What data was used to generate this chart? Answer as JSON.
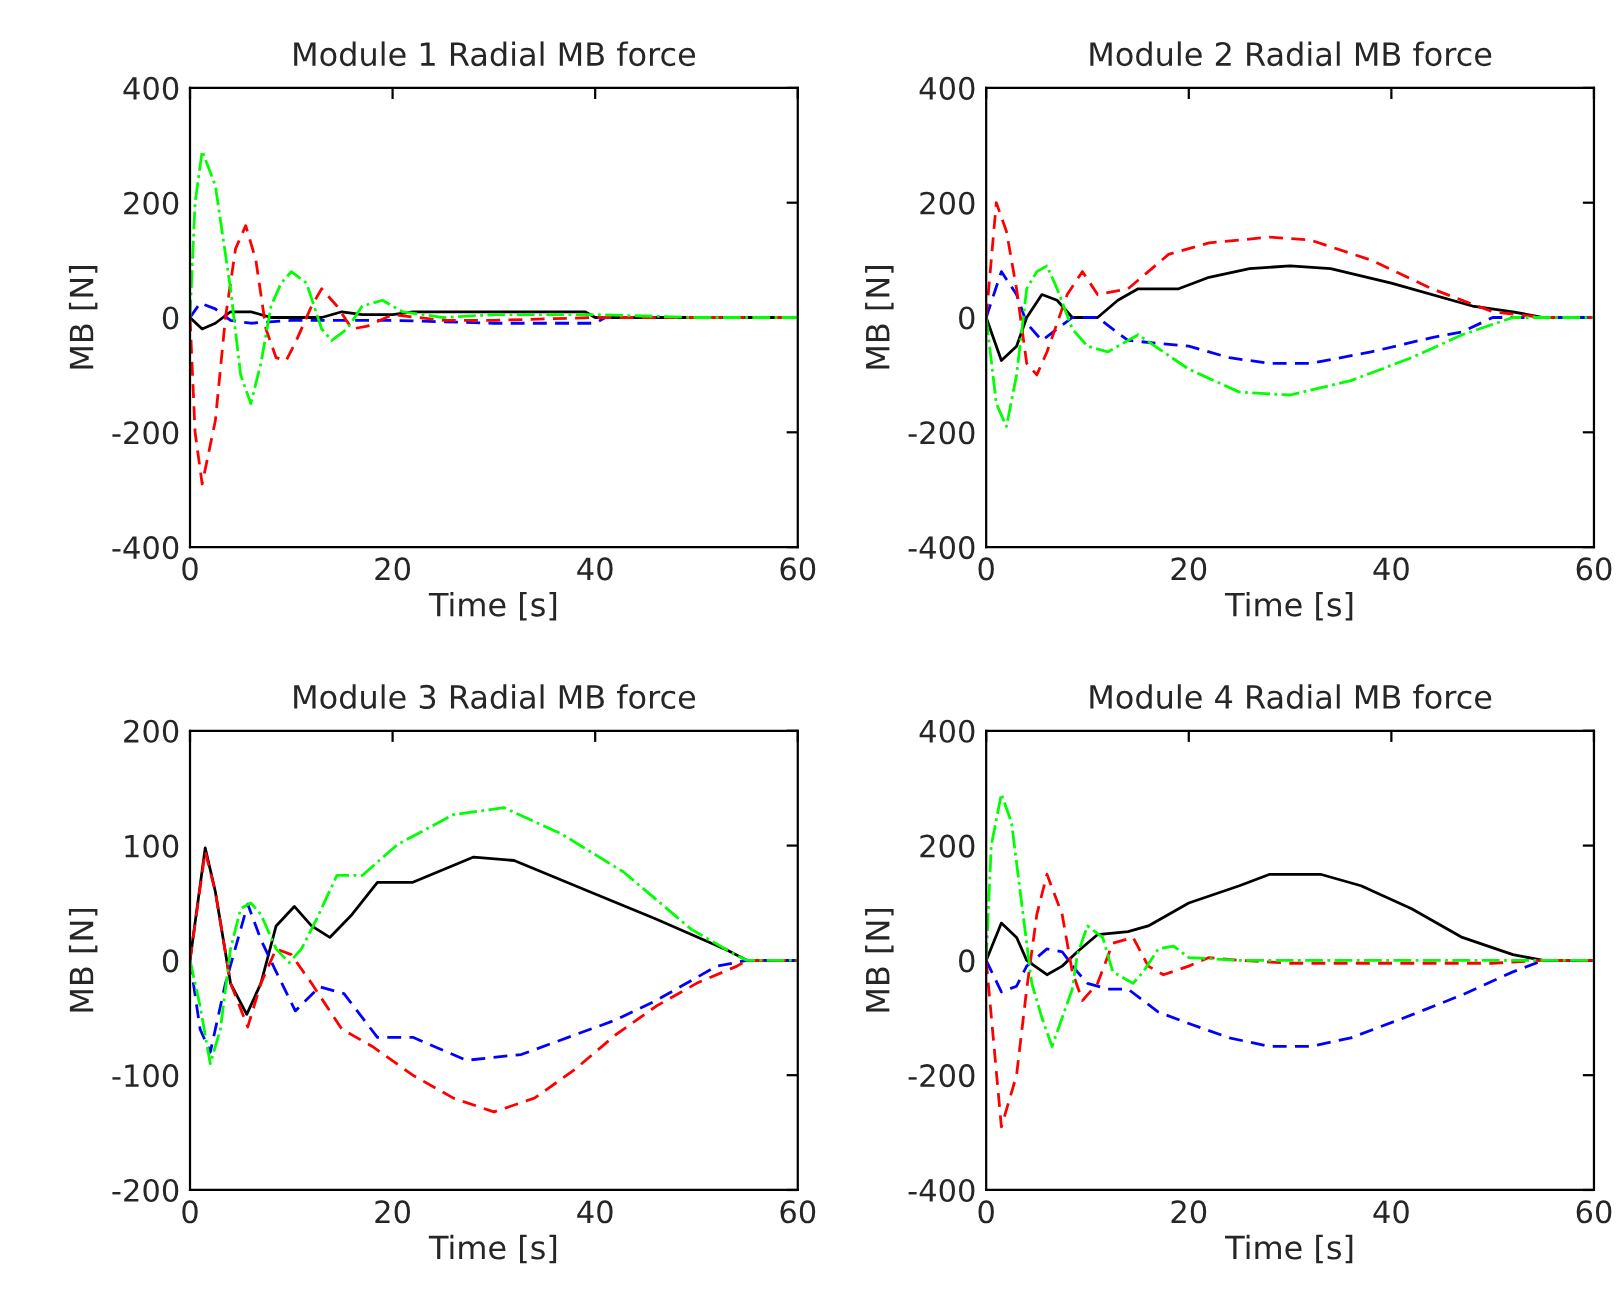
{
  "chart_data": [
    {
      "type": "line",
      "title": "Module 1 Radial MB force",
      "xlabel": "Time [s]",
      "ylabel": "MB [N]",
      "xlim": [
        0,
        60
      ],
      "xticks": [
        0,
        20,
        40,
        60
      ],
      "ylim": [
        -400,
        400
      ],
      "yticks": [
        -400,
        -200,
        0,
        200,
        400
      ],
      "series": [
        {
          "color": "#000000",
          "line_style": "solid",
          "x": [
            0,
            1.2,
            2.5,
            4,
            6,
            8,
            10,
            13,
            15,
            17,
            20,
            22,
            39,
            40,
            60
          ],
          "values": [
            0,
            -20,
            -10,
            10,
            10,
            0,
            0,
            0,
            10,
            5,
            5,
            10,
            10,
            0,
            0
          ]
        },
        {
          "color": "#0000ff",
          "line_style": "dashed",
          "x": [
            0,
            1,
            2.5,
            4,
            6,
            10,
            15,
            20,
            30,
            40,
            41,
            60
          ],
          "values": [
            0,
            25,
            15,
            -5,
            -10,
            -5,
            -5,
            -5,
            -10,
            -10,
            0,
            0
          ]
        },
        {
          "color": "#ff0000",
          "line_style": "dashed",
          "x": [
            0,
            0.5,
            1.2,
            2.5,
            3.5,
            4.5,
            5.5,
            6.5,
            7.5,
            8.5,
            9.5,
            10.5,
            12,
            13,
            14.5,
            16,
            17.5,
            20,
            25,
            30,
            40,
            50,
            60
          ],
          "values": [
            0,
            -200,
            -290,
            -180,
            0,
            120,
            160,
            100,
            -20,
            -70,
            -75,
            -40,
            20,
            50,
            20,
            -20,
            -15,
            5,
            -5,
            -5,
            0,
            0,
            0
          ]
        },
        {
          "color": "#00ff00",
          "line_style": "dashdot",
          "x": [
            0,
            0.5,
            1.2,
            2.5,
            4,
            5,
            6,
            7,
            8,
            9,
            10,
            11.5,
            13,
            14,
            15.5,
            17,
            19,
            21,
            25,
            30,
            40,
            50,
            60
          ],
          "values": [
            0,
            200,
            290,
            230,
            50,
            -100,
            -150,
            -80,
            20,
            60,
            80,
            60,
            -20,
            -40,
            -20,
            20,
            30,
            10,
            0,
            5,
            5,
            0,
            0
          ]
        }
      ]
    },
    {
      "type": "line",
      "title": "Module 2 Radial MB force",
      "xlabel": "Time [s]",
      "ylabel": "MB [N]",
      "xlim": [
        0,
        60
      ],
      "xticks": [
        0,
        20,
        40,
        60
      ],
      "ylim": [
        -400,
        400
      ],
      "yticks": [
        -400,
        -200,
        0,
        200,
        400
      ],
      "series": [
        {
          "color": "#000000",
          "line_style": "solid",
          "x": [
            0,
            1.5,
            3,
            4,
            5.5,
            7,
            8.5,
            11,
            13,
            15,
            19,
            22,
            26,
            30,
            34,
            40,
            48,
            52,
            55,
            60
          ],
          "values": [
            0,
            -75,
            -50,
            0,
            40,
            30,
            0,
            0,
            30,
            50,
            50,
            70,
            85,
            90,
            85,
            60,
            20,
            10,
            0,
            0
          ]
        },
        {
          "color": "#0000ff",
          "line_style": "dashed",
          "x": [
            0,
            1.5,
            3,
            4,
            5.5,
            7,
            8.5,
            11,
            14,
            20,
            24,
            28,
            32,
            38,
            44,
            47,
            50,
            60
          ],
          "values": [
            0,
            80,
            40,
            -10,
            -40,
            -20,
            0,
            0,
            -40,
            -50,
            -70,
            -80,
            -80,
            -60,
            -35,
            -25,
            0,
            0
          ]
        },
        {
          "color": "#ff0000",
          "line_style": "dashed",
          "x": [
            0,
            1,
            2,
            3,
            4,
            5,
            6,
            8,
            9.5,
            11,
            14,
            18,
            22,
            28,
            32,
            38,
            44,
            50,
            55,
            60
          ],
          "values": [
            0,
            200,
            150,
            50,
            -80,
            -100,
            -60,
            40,
            80,
            40,
            50,
            110,
            130,
            140,
            135,
            100,
            50,
            10,
            0,
            0
          ]
        },
        {
          "color": "#00ff00",
          "line_style": "dashdot",
          "x": [
            0,
            1,
            2,
            3,
            4,
            5,
            6,
            7,
            8.5,
            10,
            12,
            15,
            20,
            25,
            30,
            36,
            42,
            47,
            52,
            60
          ],
          "values": [
            0,
            -150,
            -190,
            -100,
            50,
            80,
            90,
            50,
            -20,
            -50,
            -60,
            -30,
            -90,
            -130,
            -135,
            -110,
            -70,
            -30,
            0,
            0
          ]
        }
      ]
    },
    {
      "type": "line",
      "title": "Module 3 Radial MB force",
      "xlabel": "Time [s]",
      "ylabel": "MB [N]",
      "xlim": [
        0,
        60
      ],
      "xticks": [
        0,
        20,
        40,
        60
      ],
      "ylim": [
        -200,
        200
      ],
      "yticks": [
        -200,
        -100,
        0,
        100,
        200
      ],
      "series": [
        {
          "color": "#000000",
          "line_style": "solid",
          "x": [
            0,
            1.5,
            2.5,
            4,
            5.6,
            7,
            8.5,
            10.3,
            12,
            13.8,
            16,
            18.5,
            22,
            28,
            32,
            39.4,
            46,
            53,
            55,
            60
          ],
          "values": [
            0,
            98,
            60,
            -20,
            -47,
            -20,
            30,
            47,
            30,
            20,
            40,
            68,
            68,
            90,
            87,
            60,
            36,
            9,
            0,
            0
          ]
        },
        {
          "color": "#0000ff",
          "line_style": "dashed",
          "x": [
            0,
            1,
            2,
            3.5,
            5.7,
            7,
            8.4,
            10.4,
            12.8,
            15.2,
            18.5,
            22,
            27.3,
            32.7,
            42,
            46,
            52,
            55,
            60
          ],
          "values": [
            0,
            -60,
            -80,
            -20,
            49,
            18,
            -8,
            -44,
            -23,
            -29,
            -67,
            -67,
            -87,
            -82,
            -52,
            -35,
            -5,
            0,
            0
          ]
        },
        {
          "color": "#ff0000",
          "line_style": "dashed",
          "x": [
            0,
            1.5,
            2.5,
            4,
            5.7,
            7,
            8.5,
            10,
            12,
            15,
            18,
            22,
            26,
            30,
            34,
            38,
            42,
            46,
            50,
            54,
            55,
            60
          ],
          "values": [
            0,
            95,
            60,
            -20,
            -58,
            -20,
            10,
            5,
            -20,
            -60,
            -75,
            -100,
            -120,
            -132,
            -120,
            -95,
            -65,
            -40,
            -20,
            -5,
            0,
            0
          ]
        },
        {
          "color": "#00ff00",
          "line_style": "dashdot",
          "x": [
            0,
            1,
            2,
            3,
            4,
            5,
            6,
            7,
            8.5,
            9.8,
            11,
            12.5,
            14.5,
            17,
            20.5,
            26,
            31,
            36.7,
            42.8,
            49.5,
            54,
            55,
            60
          ],
          "values": [
            0,
            -40,
            -90,
            -60,
            10,
            45,
            50,
            40,
            10,
            -2,
            10,
            36,
            74,
            74,
            101,
            127,
            133,
            110,
            77,
            27,
            4,
            0,
            0
          ]
        }
      ]
    },
    {
      "type": "line",
      "title": "Module 4 Radial MB force",
      "xlabel": "Time [s]",
      "ylabel": "MB [N]",
      "xlim": [
        0,
        60
      ],
      "xticks": [
        0,
        20,
        40,
        60
      ],
      "ylim": [
        -400,
        400
      ],
      "yticks": [
        -400,
        -200,
        0,
        200,
        400
      ],
      "series": [
        {
          "color": "#000000",
          "line_style": "solid",
          "x": [
            0,
            1.5,
            3,
            4,
            6,
            7.5,
            9,
            11,
            14,
            16,
            20,
            25,
            28,
            33,
            37,
            42,
            47,
            52,
            55,
            60
          ],
          "values": [
            0,
            65,
            40,
            0,
            -25,
            -10,
            15,
            45,
            50,
            60,
            100,
            130,
            150,
            150,
            130,
            90,
            40,
            10,
            0,
            0
          ]
        },
        {
          "color": "#0000ff",
          "line_style": "dashed",
          "x": [
            0,
            1.5,
            3,
            4,
            6,
            7.5,
            9,
            10,
            12,
            14,
            17,
            20,
            24,
            28,
            32,
            36,
            42,
            47,
            52,
            55,
            60
          ],
          "values": [
            0,
            -55,
            -45,
            -10,
            20,
            15,
            -20,
            -40,
            -50,
            -50,
            -90,
            -110,
            -135,
            -150,
            -150,
            -135,
            -95,
            -60,
            -20,
            0,
            0
          ]
        },
        {
          "color": "#ff0000",
          "line_style": "dashed",
          "x": [
            0,
            1.5,
            3,
            4,
            5,
            6,
            7.5,
            8.5,
            9.5,
            11,
            12.5,
            14.5,
            16,
            17.5,
            20,
            22,
            25,
            30,
            40,
            50,
            55,
            60
          ],
          "values": [
            0,
            -290,
            -200,
            -50,
            80,
            150,
            80,
            -20,
            -70,
            -40,
            30,
            40,
            -10,
            -25,
            -10,
            5,
            0,
            -5,
            -5,
            -5,
            0,
            0
          ]
        },
        {
          "color": "#00ff00",
          "line_style": "dashdot",
          "x": [
            0,
            0.5,
            1.5,
            2.5,
            3.5,
            4.5,
            5.5,
            6.5,
            7.5,
            8.5,
            9,
            10,
            11.5,
            12.5,
            14.5,
            15.5,
            17,
            18.5,
            20,
            25,
            30,
            40,
            50,
            60
          ],
          "values": [
            0,
            200,
            290,
            240,
            100,
            -40,
            -100,
            -150,
            -100,
            -50,
            10,
            60,
            40,
            -20,
            -40,
            -20,
            20,
            25,
            5,
            0,
            0,
            0,
            0,
            0
          ]
        }
      ]
    }
  ]
}
